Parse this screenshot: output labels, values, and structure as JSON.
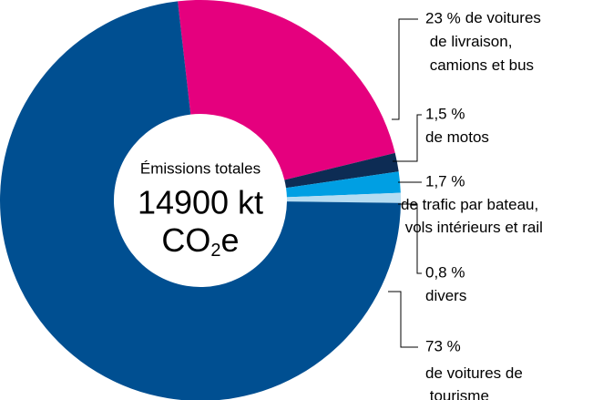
{
  "chart_data": {
    "type": "donut",
    "categories": [
      "de voitures de livraison, camions et bus",
      "de motos",
      "de trafic par bateau, vols intérieurs et rail",
      "divers",
      "de voitures de tourisme"
    ],
    "values": [
      23,
      1.5,
      1.7,
      0.8,
      73
    ],
    "value_labels": [
      "23 %",
      "1,5 %",
      "1,7 %",
      "0,8 %",
      "73 %"
    ],
    "colors": [
      "#e5007e",
      "#0d2c54",
      "#009fe3",
      "#b5dcf2",
      "#004f91"
    ],
    "center": {
      "title": "Émissions totales",
      "value": "14900 kt",
      "unit": [
        "CO",
        "2",
        "e"
      ]
    }
  }
}
